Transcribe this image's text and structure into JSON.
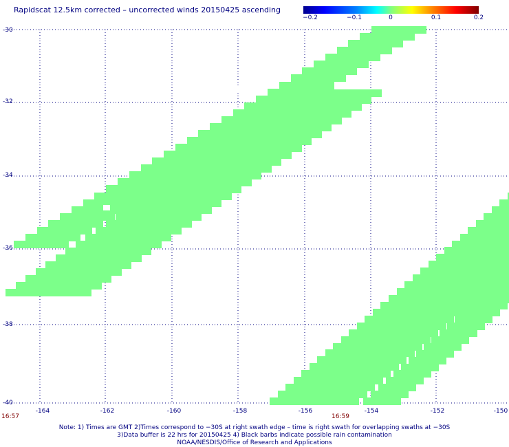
{
  "title": "Rapidscat 12.5km corrected – uncorrected winds 20150425 ascending",
  "colorbar": {
    "labels": [
      "−0.2",
      "−0.1",
      "0",
      "0.1",
      "0.2"
    ],
    "values": [
      -0.2,
      -0.1,
      0,
      0.1,
      0.2
    ]
  },
  "map": {
    "lat_range": [
      -40,
      -30
    ],
    "lon_range": [
      -165,
      -150
    ],
    "lat_ticks": [
      "-30",
      "-32",
      "-34",
      "-36",
      "-38",
      "-40"
    ],
    "lon_ticks": [
      "-164",
      "-162",
      "-160",
      "-158",
      "-156",
      "-154",
      "-152",
      "-150"
    ],
    "swath_color": "#7cff8a",
    "grid": "dotted"
  },
  "times": {
    "left": "16:57",
    "mid": "16:59"
  },
  "notes": [
    "Note: 1) Times are GMT 2)Times correspond to −30S at right swath edge – time is right swath for overlapping swaths at −30S",
    "3)Data buffer is 22 hrs for 20150425 4) Black barbs indicate possible rain contamination",
    "NOAA/NESDIS/Office of Research and Applications"
  ]
}
